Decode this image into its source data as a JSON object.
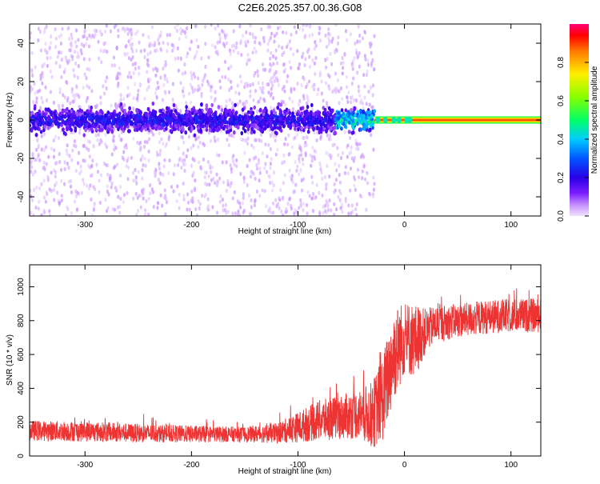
{
  "page_title": "C2E6.2025.357.00.36.G08",
  "chart_data": [
    {
      "id": "spectrogram",
      "type": "heatmap",
      "title": "C2E6.2025.357.00.36.G08",
      "xlabel": "Height of straight line (km)",
      "ylabel": "Frequency (Hz)",
      "xlim": [
        -352,
        128
      ],
      "ylim": [
        -50,
        50
      ],
      "x_ticks": [
        -300,
        -200,
        -100,
        0,
        100
      ],
      "y_ticks": [
        -40,
        -20,
        0,
        20,
        40
      ],
      "x_tick_labels": [
        "-300",
        "-200",
        "-100",
        "0",
        "100"
      ],
      "y_tick_labels": [
        "-40",
        "-20",
        "0",
        "20",
        "40"
      ],
      "colorbar": {
        "label": "Normalized spectral amplitude",
        "range": [
          0,
          1
        ],
        "ticks": [
          0,
          0.2,
          0.4,
          0.6,
          0.8
        ],
        "tick_labels": [
          "0.0",
          "0.2",
          "0.4",
          "0.6",
          "0.8"
        ],
        "colors": [
          "#e6d4ff",
          "#c58cff",
          "#7a1cff",
          "#2a00e6",
          "#0055ff",
          "#00ccff",
          "#00ff66",
          "#88ff00",
          "#ffee00",
          "#ff7700",
          "#ff0000",
          "#ff0077"
        ]
      },
      "description_regions": [
        {
          "x_range": [
            -352,
            -30
          ],
          "y_range": [
            -50,
            50
          ],
          "amplitude": 0.03
        },
        {
          "x_range": [
            -352,
            -30
          ],
          "y_range": [
            -12,
            12
          ],
          "amplitude": 0.12
        },
        {
          "x_range": [
            -60,
            -30
          ],
          "y_range": [
            -4,
            4
          ],
          "amplitude": 0.3
        },
        {
          "x_range": [
            -30,
            128
          ],
          "y_range": [
            -1.5,
            1.5
          ],
          "amplitude": 0.95
        }
      ]
    },
    {
      "id": "snr",
      "type": "line",
      "xlabel": "Height of straight line (km)",
      "ylabel": "SNR (10 * v/v)",
      "xlim": [
        -352,
        128
      ],
      "ylim": [
        0,
        1130
      ],
      "x_ticks": [
        -300,
        -200,
        -100,
        0,
        100
      ],
      "y_ticks": [
        0,
        200,
        400,
        600,
        800,
        1000
      ],
      "x_tick_labels": [
        "-300",
        "-200",
        "-100",
        "0",
        "100"
      ],
      "y_tick_labels": [
        "0",
        "200",
        "400",
        "600",
        "800",
        "1000"
      ],
      "series": [
        {
          "name": "SNR",
          "color": "#ee3333",
          "x": [
            -352,
            -300,
            -250,
            -200,
            -150,
            -120,
            -100,
            -80,
            -60,
            -40,
            -30,
            -20,
            -10,
            0,
            10,
            20,
            30,
            50,
            75,
            100,
            128
          ],
          "mean": [
            150,
            145,
            135,
            130,
            128,
            135,
            170,
            210,
            230,
            250,
            240,
            350,
            600,
            700,
            680,
            740,
            780,
            800,
            820,
            830,
            830
          ],
          "spread": [
            60,
            60,
            55,
            50,
            45,
            60,
            90,
            120,
            130,
            150,
            200,
            260,
            280,
            220,
            220,
            130,
            110,
            100,
            100,
            100,
            100
          ]
        }
      ]
    }
  ]
}
